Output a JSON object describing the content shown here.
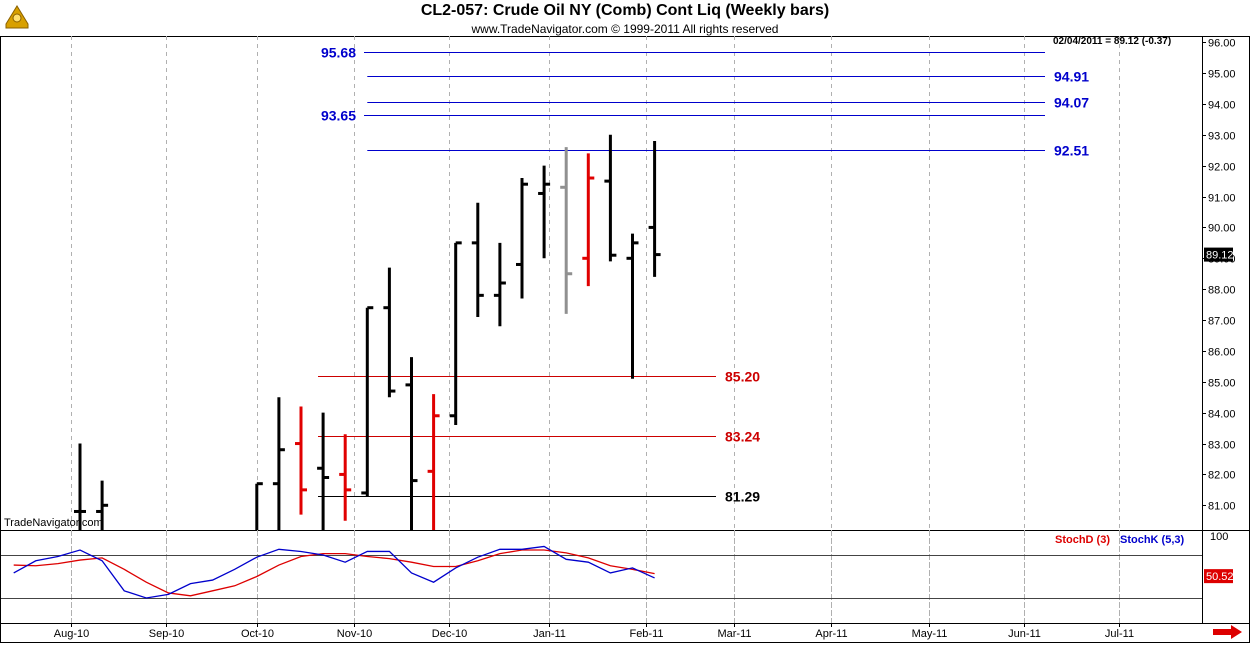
{
  "header": {
    "title": "CL2-057:  Crude Oil NY (Comb) Cont Liq  (Weekly bars)",
    "subtitle": "www.TradeNavigator.com © 1999-2011 All rights reserved",
    "watermark": "TradeNavigator.com",
    "last_bar_readout": "02/04/2011 = 89.12 (-0.37)"
  },
  "colors": {
    "price_bar": "#000000",
    "price_bar_red": "#e00000",
    "price_bar_gray": "#909090",
    "level_blue": "#0000cc",
    "level_red": "#cc0000",
    "level_black": "#000000",
    "stoch_d": "#dd0000",
    "stoch_k": "#0000cc",
    "grid": "#b0b0b0",
    "nav_arrow": "#dd0000"
  },
  "chart_data": [
    {
      "type": "ohlc",
      "ylim": [
        80.2,
        96.2
      ],
      "yticks": [
        "81.00",
        "82.00",
        "83.00",
        "84.00",
        "85.00",
        "86.00",
        "87.00",
        "88.00",
        "89.00",
        "90.00",
        "91.00",
        "92.00",
        "93.00",
        "94.00",
        "95.00",
        "96.00"
      ],
      "y_current": "89.12",
      "bars": [
        {
          "x": 0.0,
          "o": 80.8,
          "h": 83.0,
          "l": 79.0,
          "c": 80.8,
          "color": "black"
        },
        {
          "x": 1.0,
          "o": 80.8,
          "h": 81.8,
          "l": 79.0,
          "c": 81.0,
          "color": "black"
        },
        {
          "x": 8.0,
          "o": 79.0,
          "h": 81.7,
          "l": 79.0,
          "c": 81.7,
          "color": "black"
        },
        {
          "x": 9.0,
          "o": 81.7,
          "h": 84.5,
          "l": 79.0,
          "c": 82.8,
          "color": "black"
        },
        {
          "x": 10.0,
          "o": 83.0,
          "h": 84.2,
          "l": 80.7,
          "c": 81.5,
          "color": "red"
        },
        {
          "x": 11.0,
          "o": 82.2,
          "h": 84.0,
          "l": 79.0,
          "c": 81.9,
          "color": "black"
        },
        {
          "x": 12.0,
          "o": 82.0,
          "h": 83.3,
          "l": 80.5,
          "c": 81.5,
          "color": "red"
        },
        {
          "x": 13.0,
          "o": 81.4,
          "h": 87.4,
          "l": 81.3,
          "c": 87.4,
          "color": "black"
        },
        {
          "x": 14.0,
          "o": 87.4,
          "h": 88.7,
          "l": 84.5,
          "c": 84.7,
          "color": "black"
        },
        {
          "x": 15.0,
          "o": 84.9,
          "h": 85.8,
          "l": 79.0,
          "c": 81.8,
          "color": "black"
        },
        {
          "x": 16.0,
          "o": 82.1,
          "h": 84.6,
          "l": 79.0,
          "c": 83.9,
          "color": "red"
        },
        {
          "x": 17.0,
          "o": 83.9,
          "h": 89.5,
          "l": 83.6,
          "c": 89.5,
          "color": "black"
        },
        {
          "x": 18.0,
          "o": 89.5,
          "h": 90.8,
          "l": 87.1,
          "c": 87.8,
          "color": "black"
        },
        {
          "x": 19.0,
          "o": 87.8,
          "h": 89.5,
          "l": 86.8,
          "c": 88.2,
          "color": "black"
        },
        {
          "x": 20.0,
          "o": 88.8,
          "h": 91.6,
          "l": 87.7,
          "c": 91.4,
          "color": "black"
        },
        {
          "x": 21.0,
          "o": 91.1,
          "h": 92.0,
          "l": 89.0,
          "c": 91.4,
          "color": "black"
        },
        {
          "x": 22.0,
          "o": 91.3,
          "h": 92.6,
          "l": 87.2,
          "c": 88.5,
          "color": "gray"
        },
        {
          "x": 23.0,
          "o": 89.0,
          "h": 92.4,
          "l": 88.1,
          "c": 91.6,
          "color": "red"
        },
        {
          "x": 24.0,
          "o": 91.5,
          "h": 93.0,
          "l": 88.9,
          "c": 89.1,
          "color": "black"
        },
        {
          "x": 25.0,
          "o": 89.0,
          "h": 89.8,
          "l": 85.1,
          "c": 89.5,
          "color": "black"
        },
        {
          "x": 26.0,
          "o": 90.0,
          "h": 92.8,
          "l": 88.4,
          "c": 89.12,
          "color": "black"
        }
      ],
      "levels": [
        {
          "value": 95.68,
          "label": "95.68",
          "color": "blue",
          "from": -4.0,
          "label_side": "left"
        },
        {
          "value": 94.91,
          "label": "94.91",
          "color": "blue",
          "from": 13.0,
          "label_side": "right"
        },
        {
          "value": 94.07,
          "label": "94.07",
          "color": "blue",
          "from": 13.0,
          "label_side": "right"
        },
        {
          "value": 93.65,
          "label": "93.65",
          "color": "blue",
          "from": -4.0,
          "label_side": "left"
        },
        {
          "value": 92.51,
          "label": "92.51",
          "color": "blue",
          "from": 13.0,
          "label_side": "right"
        },
        {
          "value": 85.2,
          "label": "85.20",
          "color": "red",
          "from": 11.0,
          "label_side": "mid"
        },
        {
          "value": 83.24,
          "label": "83.24",
          "color": "red",
          "from": 11.0,
          "label_side": "mid"
        },
        {
          "value": 81.29,
          "label": "81.29",
          "color": "black",
          "from": 11.0,
          "label_side": "mid"
        }
      ],
      "x_months": [
        {
          "label": "Aug-10",
          "x": -0.4
        },
        {
          "label": "Sep-10",
          "x": 3.9
        },
        {
          "label": "Oct-10",
          "x": 8.0
        },
        {
          "label": "Nov-10",
          "x": 12.4
        },
        {
          "label": "Dec-10",
          "x": 16.7
        },
        {
          "label": "Jan-11",
          "x": 21.2
        },
        {
          "label": "Feb-11",
          "x": 25.6
        },
        {
          "label": "Mar-11",
          "x": 29.6
        },
        {
          "label": "Apr-11",
          "x": 34.0
        },
        {
          "label": "May-11",
          "x": 38.4
        },
        {
          "label": "Jun-11",
          "x": 42.7
        },
        {
          "label": "Jul-11",
          "x": 47.0
        }
      ]
    },
    {
      "type": "line",
      "ylim": [
        -15,
        115
      ],
      "yticks": [
        "100"
      ],
      "y_current": "50.52",
      "reference_lines": [
        80,
        20
      ],
      "series": [
        {
          "name": "StochD (3)",
          "color": "red",
          "x": [
            -3,
            -2,
            -1,
            0,
            1,
            2,
            3,
            4,
            5,
            6,
            7,
            8,
            9,
            10,
            11,
            12,
            13,
            14,
            15,
            16,
            17,
            18,
            19,
            20,
            21,
            22,
            23,
            24,
            25,
            26
          ],
          "values": [
            66,
            65,
            68,
            73,
            76,
            60,
            42,
            27,
            23,
            30,
            37,
            50,
            66,
            78,
            82,
            82,
            78,
            75,
            70,
            64,
            64,
            72,
            82,
            87,
            87,
            83,
            76,
            65,
            60,
            54
          ]
        },
        {
          "name": "StochK (5,3)",
          "color": "blue",
          "x": [
            -3,
            -2,
            -1,
            0,
            1,
            2,
            3,
            4,
            5,
            6,
            7,
            8,
            9,
            10,
            11,
            12,
            13,
            14,
            15,
            16,
            17,
            18,
            19,
            20,
            21,
            22,
            23,
            24,
            25,
            26
          ],
          "values": [
            55,
            72,
            78,
            87,
            72,
            30,
            20,
            25,
            40,
            45,
            60,
            77,
            88,
            85,
            80,
            70,
            85,
            85,
            55,
            42,
            62,
            77,
            88,
            88,
            92,
            74,
            70,
            55,
            62,
            48
          ]
        }
      ]
    }
  ]
}
